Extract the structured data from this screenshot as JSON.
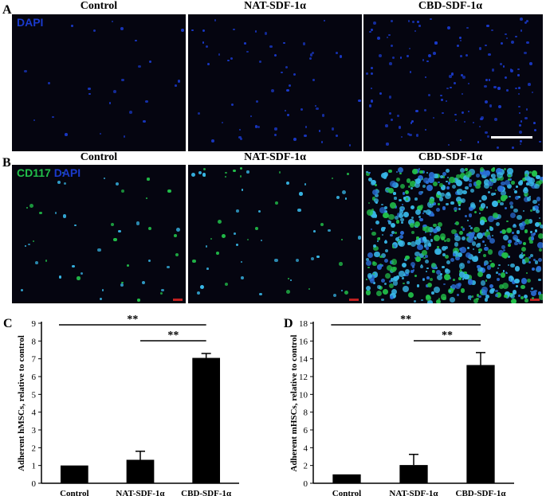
{
  "panel_a": {
    "letter": "A",
    "titles": [
      "Control",
      "NAT-SDF-1α",
      "CBD-SDF-1α"
    ],
    "stain_label": "DAPI",
    "dot_counts": [
      25,
      60,
      140
    ]
  },
  "panel_b": {
    "letter": "B",
    "titles": [
      "Control",
      "NAT-SDF-1α",
      "CBD-SDF-1α"
    ],
    "stain_label_1": "CD117",
    "stain_label_2": "DAPI",
    "dot_counts": [
      45,
      60,
      700
    ]
  },
  "colors": {
    "dapi_blue": "#1a3acc",
    "cd117_green": "#22c04a",
    "cyan_mix": "#38b8e8",
    "bar": "#000000"
  },
  "chart_data": [
    {
      "type": "bar",
      "panel_letter": "C",
      "categories": [
        "Control",
        "NAT-SDF-1α",
        "CBD-SDF-1α"
      ],
      "values": [
        1.0,
        1.32,
        7.05
      ],
      "errors": [
        0.0,
        0.48,
        0.25
      ],
      "ylabel": "Adherent hMSCs, relative to control",
      "ylim": [
        0,
        9
      ],
      "yticks": [
        0,
        1,
        2,
        3,
        4,
        5,
        6,
        7,
        8,
        9
      ],
      "significance": [
        {
          "from": 0,
          "to": 2,
          "label": "**"
        },
        {
          "from": 1,
          "to": 2,
          "label": "**"
        }
      ]
    },
    {
      "type": "bar",
      "panel_letter": "D",
      "categories": [
        "Control",
        "NAT-SDF-1α",
        "CBD-SDF-1α"
      ],
      "values": [
        1.0,
        2.05,
        13.3
      ],
      "errors": [
        0.0,
        1.2,
        1.4
      ],
      "ylabel": "Adherent mHSCs, relative to control",
      "ylim": [
        0,
        18
      ],
      "yticks": [
        0,
        2,
        4,
        6,
        8,
        10,
        12,
        14,
        16,
        18
      ],
      "significance": [
        {
          "from": 0,
          "to": 2,
          "label": "**"
        },
        {
          "from": 1,
          "to": 2,
          "label": "**"
        }
      ]
    }
  ]
}
